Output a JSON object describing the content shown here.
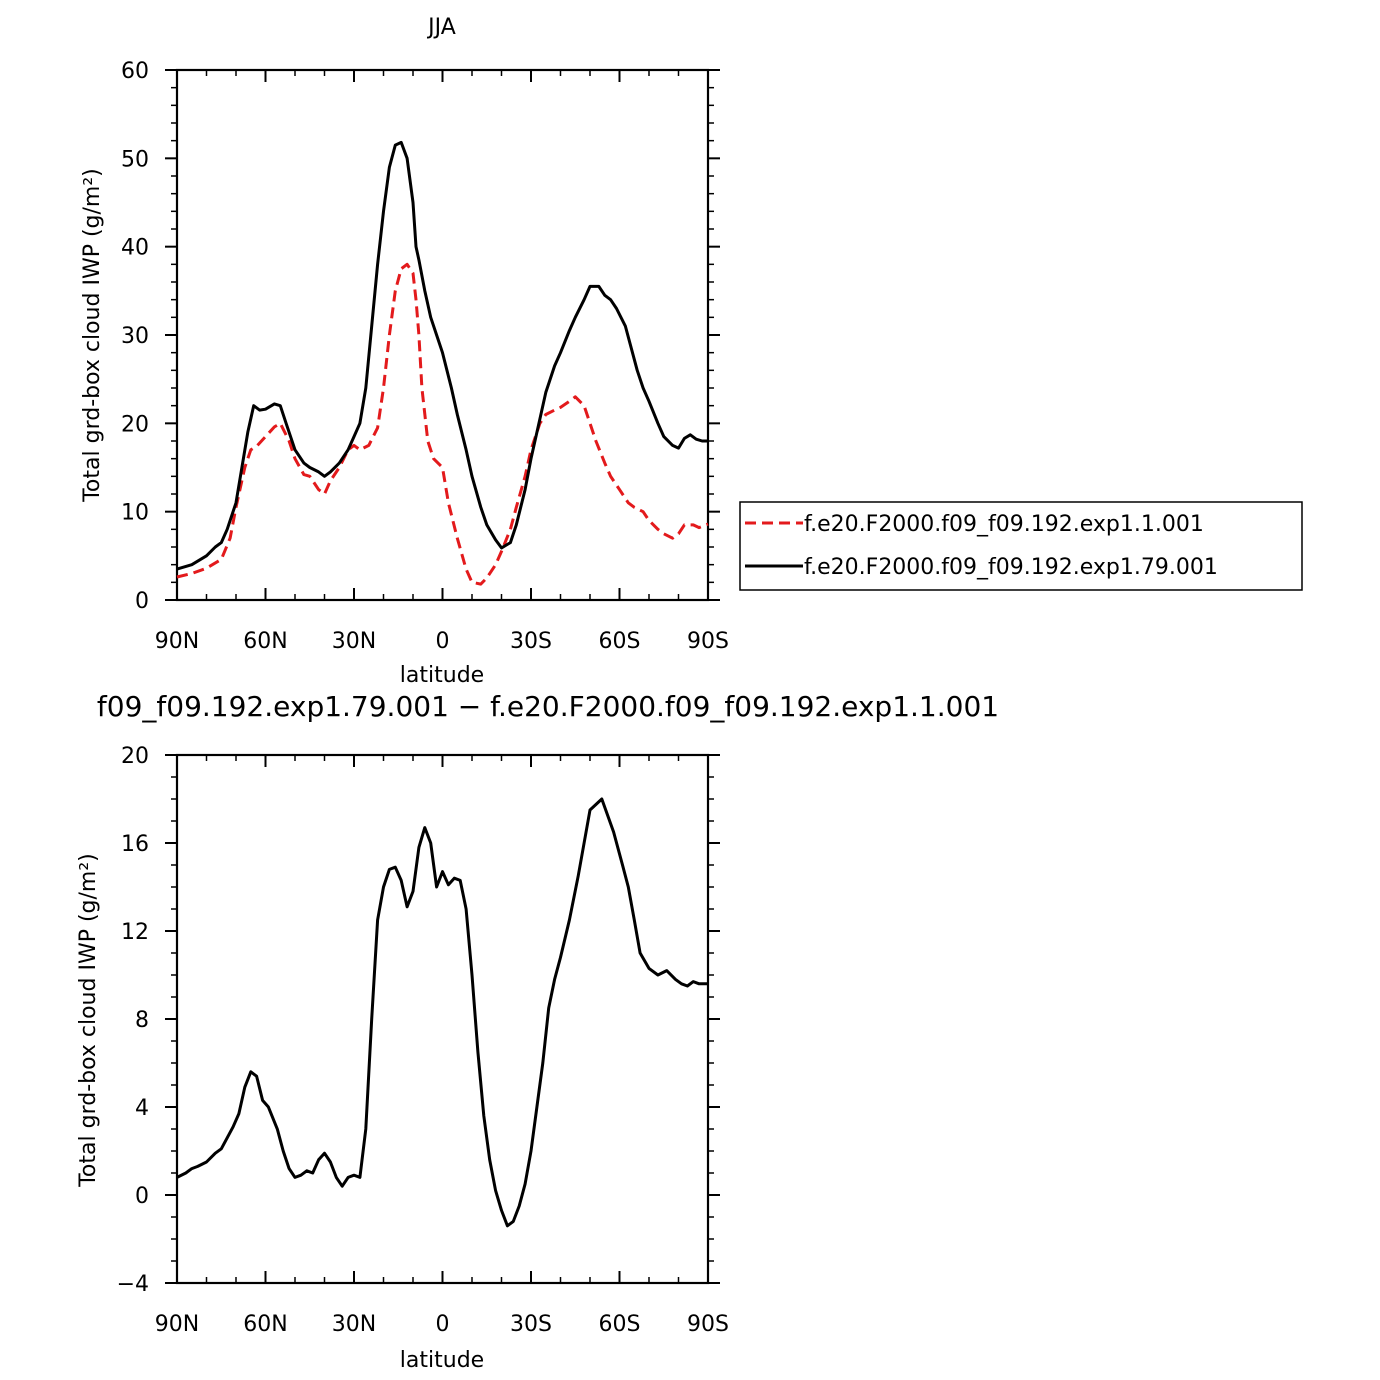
{
  "chart_data": [
    {
      "type": "line",
      "title": "JJA",
      "xlabel": "latitude",
      "ylabel": "Total grd-box cloud IWP (g/m²)",
      "xlim": [
        90,
        -90
      ],
      "ylim": [
        0,
        60
      ],
      "x_ticks": [
        {
          "value": 90,
          "label": "90N"
        },
        {
          "value": 60,
          "label": "60N"
        },
        {
          "value": 30,
          "label": "30N"
        },
        {
          "value": 0,
          "label": "0"
        },
        {
          "value": -30,
          "label": "30S"
        },
        {
          "value": -60,
          "label": "60S"
        },
        {
          "value": -90,
          "label": "90S"
        }
      ],
      "y_ticks": [
        {
          "value": 0,
          "label": "0"
        },
        {
          "value": 10,
          "label": "10"
        },
        {
          "value": 20,
          "label": "20"
        },
        {
          "value": 30,
          "label": "30"
        },
        {
          "value": 40,
          "label": "40"
        },
        {
          "value": 50,
          "label": "50"
        },
        {
          "value": 60,
          "label": "60"
        }
      ],
      "legend_position": "right",
      "series": [
        {
          "name": "f.e20.F2000.f09_f09.192.exp1.1.001",
          "color": "#e31a1c",
          "dash": "dashed",
          "x": [
            90,
            85,
            80,
            75,
            72,
            70,
            67,
            65,
            63,
            60,
            57,
            55,
            52,
            50,
            47,
            45,
            42,
            40,
            38,
            35,
            32,
            30,
            28,
            25,
            22,
            20,
            18,
            16,
            14,
            12,
            10,
            9,
            8,
            7,
            5,
            3,
            0,
            -2,
            -5,
            -8,
            -10,
            -13,
            -15,
            -18,
            -20,
            -23,
            -25,
            -28,
            -30,
            -33,
            -35,
            -38,
            -40,
            -43,
            -45,
            -48,
            -50,
            -52,
            -55,
            -57,
            -60,
            -63,
            -65,
            -68,
            -70,
            -73,
            -75,
            -78,
            -80,
            -82,
            -85,
            -87,
            -90
          ],
          "y": [
            2.6,
            3.0,
            3.6,
            4.6,
            7.0,
            10.5,
            15.0,
            17.0,
            17.4,
            18.5,
            19.6,
            20.0,
            18.0,
            16.0,
            14.2,
            14.0,
            12.5,
            12.0,
            13.5,
            15.0,
            17.0,
            17.5,
            17.0,
            17.5,
            19.5,
            24.0,
            30.0,
            35.0,
            37.5,
            38.0,
            37.0,
            34.0,
            30.0,
            24.0,
            18.0,
            16.0,
            15.0,
            11.0,
            7.0,
            3.5,
            2.0,
            1.8,
            2.5,
            4.0,
            5.5,
            8.0,
            10.5,
            14.0,
            17.0,
            20.0,
            21.0,
            21.5,
            21.8,
            22.5,
            23.0,
            22.0,
            20.0,
            18.0,
            15.5,
            14.0,
            12.5,
            11.0,
            10.5,
            10.0,
            9.0,
            8.0,
            7.5,
            7.0,
            7.5,
            8.5,
            8.5,
            8.2,
            8.6
          ]
        },
        {
          "name": "f.e20.F2000.f09_f09.192.exp1.79.001",
          "color": "#000000",
          "dash": "solid",
          "x": [
            90,
            85,
            80,
            77,
            75,
            73,
            70,
            68,
            66,
            64,
            62,
            60,
            57,
            55,
            53,
            50,
            47,
            45,
            42,
            40,
            38,
            35,
            32,
            30,
            28,
            26,
            24,
            22,
            20,
            18,
            16,
            14,
            12,
            10,
            9,
            8,
            6,
            4,
            2,
            0,
            -3,
            -5,
            -8,
            -10,
            -13,
            -15,
            -18,
            -20,
            -23,
            -25,
            -28,
            -30,
            -33,
            -35,
            -38,
            -40,
            -43,
            -45,
            -48,
            -50,
            -53,
            -55,
            -57,
            -59,
            -62,
            -64,
            -66,
            -68,
            -70,
            -73,
            -75,
            -78,
            -80,
            -82,
            -84,
            -86,
            -88,
            -90
          ],
          "y": [
            3.5,
            4.0,
            5.0,
            6.0,
            6.5,
            8.0,
            11.0,
            15.0,
            19.0,
            22.0,
            21.5,
            21.6,
            22.2,
            22.0,
            20.0,
            17.0,
            15.5,
            15.0,
            14.5,
            14.0,
            14.5,
            15.5,
            17.0,
            18.5,
            20.0,
            24.0,
            31.0,
            38.0,
            44.0,
            49.0,
            51.5,
            51.8,
            50.0,
            45.0,
            40.0,
            38.5,
            35.0,
            32.0,
            30.0,
            28.0,
            24.0,
            21.0,
            17.0,
            14.0,
            10.5,
            8.5,
            6.8,
            5.9,
            6.5,
            8.5,
            12.5,
            16.0,
            20.5,
            23.5,
            26.5,
            28.0,
            30.5,
            32.0,
            34.0,
            35.5,
            35.5,
            34.5,
            34.0,
            33.0,
            31.0,
            28.5,
            26.0,
            24.0,
            22.5,
            20.0,
            18.5,
            17.5,
            17.2,
            18.3,
            18.7,
            18.2,
            18.0,
            18.0
          ]
        }
      ]
    },
    {
      "type": "line",
      "title": "f09_f09.192.exp1.79.001 − f.e20.F2000.f09_f09.192.exp1.1.001",
      "xlabel": "latitude",
      "ylabel": "Total grd-box cloud IWP (g/m²)",
      "xlim": [
        90,
        -90
      ],
      "ylim": [
        -4,
        20
      ],
      "x_ticks": [
        {
          "value": 90,
          "label": "90N"
        },
        {
          "value": 60,
          "label": "60N"
        },
        {
          "value": 30,
          "label": "30N"
        },
        {
          "value": 0,
          "label": "0"
        },
        {
          "value": -30,
          "label": "30S"
        },
        {
          "value": -60,
          "label": "60S"
        },
        {
          "value": -90,
          "label": "90S"
        }
      ],
      "y_ticks": [
        {
          "value": -4,
          "label": "−4"
        },
        {
          "value": 0,
          "label": "0"
        },
        {
          "value": 4,
          "label": "4"
        },
        {
          "value": 8,
          "label": "8"
        },
        {
          "value": 12,
          "label": "12"
        },
        {
          "value": 16,
          "label": "16"
        },
        {
          "value": 20,
          "label": "20"
        }
      ],
      "series": [
        {
          "color": "#000000",
          "dash": "solid",
          "x": [
            90,
            87,
            85,
            83,
            80,
            77,
            75,
            73,
            71,
            69,
            67,
            65,
            63,
            61,
            59,
            56,
            54,
            52,
            50,
            48,
            46,
            44,
            42,
            40,
            38,
            36,
            34,
            32,
            30,
            28,
            26,
            24,
            22,
            20,
            18,
            16,
            14,
            12,
            10,
            8,
            6,
            4,
            2,
            0,
            -2,
            -4,
            -6,
            -8,
            -10,
            -12,
            -14,
            -16,
            -18,
            -20,
            -22,
            -24,
            -26,
            -28,
            -30,
            -32,
            -34,
            -36,
            -38,
            -40,
            -43,
            -46,
            -50,
            -54,
            -58,
            -61,
            -63,
            -65,
            -67,
            -70,
            -73,
            -76,
            -79,
            -81,
            -83,
            -85,
            -87,
            -90
          ],
          "y": [
            0.8,
            1.0,
            1.2,
            1.3,
            1.5,
            1.9,
            2.1,
            2.6,
            3.1,
            3.7,
            4.9,
            5.6,
            5.4,
            4.3,
            4.0,
            3.0,
            2.0,
            1.2,
            0.8,
            0.9,
            1.1,
            1.0,
            1.6,
            1.9,
            1.5,
            0.8,
            0.4,
            0.8,
            0.9,
            0.8,
            3.0,
            8.0,
            12.5,
            14.0,
            14.8,
            14.9,
            14.3,
            13.1,
            13.8,
            15.8,
            16.7,
            16.0,
            14.0,
            14.7,
            14.1,
            14.4,
            14.3,
            13.0,
            10.0,
            6.5,
            3.6,
            1.6,
            0.2,
            -0.7,
            -1.4,
            -1.2,
            -0.5,
            0.5,
            2.0,
            4.0,
            6.0,
            8.5,
            9.8,
            10.8,
            12.5,
            14.5,
            17.5,
            18.0,
            16.5,
            15.0,
            14.0,
            12.5,
            11.0,
            10.3,
            10.0,
            10.2,
            9.8,
            9.6,
            9.5,
            9.7,
            9.6,
            9.6
          ]
        }
      ]
    }
  ]
}
